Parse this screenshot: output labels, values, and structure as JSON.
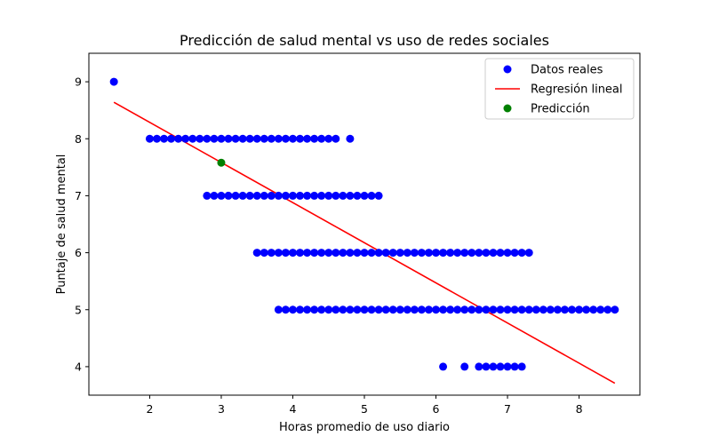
{
  "chart_data": {
    "type": "scatter",
    "title": "Predicción de salud mental vs uso de redes sociales",
    "xlabel": "Horas promedio de uso diario",
    "ylabel": "Puntaje de salud mental",
    "xlim": [
      1.15,
      8.85
    ],
    "ylim": [
      3.5,
      9.5
    ],
    "xticks": [
      2,
      3,
      4,
      5,
      6,
      7,
      8
    ],
    "yticks": [
      4,
      5,
      6,
      7,
      8,
      9
    ],
    "grid": false,
    "legend_position": "top-right",
    "legend": [
      {
        "label": "Datos reales",
        "marker": "point",
        "color": "#0000ff"
      },
      {
        "label": "Regresión lineal",
        "marker": "line",
        "color": "#ff0000"
      },
      {
        "label": "Predicción",
        "marker": "point",
        "color": "#008000"
      }
    ],
    "series": [
      {
        "name": "Datos reales",
        "kind": "scatter",
        "color": "#0000ff",
        "points": [
          {
            "x": 1.5,
            "y": 9
          },
          {
            "x": 2.0,
            "y": 8
          },
          {
            "x": 2.1,
            "y": 8
          },
          {
            "x": 2.2,
            "y": 8
          },
          {
            "x": 2.3,
            "y": 8
          },
          {
            "x": 2.4,
            "y": 8
          },
          {
            "x": 2.5,
            "y": 8
          },
          {
            "x": 2.6,
            "y": 8
          },
          {
            "x": 2.7,
            "y": 8
          },
          {
            "x": 2.8,
            "y": 8
          },
          {
            "x": 2.9,
            "y": 8
          },
          {
            "x": 3.0,
            "y": 8
          },
          {
            "x": 3.1,
            "y": 8
          },
          {
            "x": 3.2,
            "y": 8
          },
          {
            "x": 3.3,
            "y": 8
          },
          {
            "x": 3.4,
            "y": 8
          },
          {
            "x": 3.5,
            "y": 8
          },
          {
            "x": 3.6,
            "y": 8
          },
          {
            "x": 3.7,
            "y": 8
          },
          {
            "x": 3.8,
            "y": 8
          },
          {
            "x": 3.9,
            "y": 8
          },
          {
            "x": 4.0,
            "y": 8
          },
          {
            "x": 4.1,
            "y": 8
          },
          {
            "x": 4.2,
            "y": 8
          },
          {
            "x": 4.3,
            "y": 8
          },
          {
            "x": 4.4,
            "y": 8
          },
          {
            "x": 4.5,
            "y": 8
          },
          {
            "x": 4.6,
            "y": 8
          },
          {
            "x": 4.8,
            "y": 8
          },
          {
            "x": 2.8,
            "y": 7
          },
          {
            "x": 2.9,
            "y": 7
          },
          {
            "x": 3.0,
            "y": 7
          },
          {
            "x": 3.1,
            "y": 7
          },
          {
            "x": 3.2,
            "y": 7
          },
          {
            "x": 3.3,
            "y": 7
          },
          {
            "x": 3.4,
            "y": 7
          },
          {
            "x": 3.5,
            "y": 7
          },
          {
            "x": 3.6,
            "y": 7
          },
          {
            "x": 3.7,
            "y": 7
          },
          {
            "x": 3.8,
            "y": 7
          },
          {
            "x": 3.9,
            "y": 7
          },
          {
            "x": 4.0,
            "y": 7
          },
          {
            "x": 4.1,
            "y": 7
          },
          {
            "x": 4.2,
            "y": 7
          },
          {
            "x": 4.3,
            "y": 7
          },
          {
            "x": 4.4,
            "y": 7
          },
          {
            "x": 4.5,
            "y": 7
          },
          {
            "x": 4.6,
            "y": 7
          },
          {
            "x": 4.7,
            "y": 7
          },
          {
            "x": 4.8,
            "y": 7
          },
          {
            "x": 4.9,
            "y": 7
          },
          {
            "x": 5.0,
            "y": 7
          },
          {
            "x": 5.1,
            "y": 7
          },
          {
            "x": 5.2,
            "y": 7
          },
          {
            "x": 3.5,
            "y": 6
          },
          {
            "x": 3.6,
            "y": 6
          },
          {
            "x": 3.7,
            "y": 6
          },
          {
            "x": 3.8,
            "y": 6
          },
          {
            "x": 3.9,
            "y": 6
          },
          {
            "x": 4.0,
            "y": 6
          },
          {
            "x": 4.1,
            "y": 6
          },
          {
            "x": 4.2,
            "y": 6
          },
          {
            "x": 4.3,
            "y": 6
          },
          {
            "x": 4.4,
            "y": 6
          },
          {
            "x": 4.5,
            "y": 6
          },
          {
            "x": 4.6,
            "y": 6
          },
          {
            "x": 4.7,
            "y": 6
          },
          {
            "x": 4.8,
            "y": 6
          },
          {
            "x": 4.9,
            "y": 6
          },
          {
            "x": 5.0,
            "y": 6
          },
          {
            "x": 5.1,
            "y": 6
          },
          {
            "x": 5.2,
            "y": 6
          },
          {
            "x": 5.3,
            "y": 6
          },
          {
            "x": 5.4,
            "y": 6
          },
          {
            "x": 5.5,
            "y": 6
          },
          {
            "x": 5.6,
            "y": 6
          },
          {
            "x": 5.7,
            "y": 6
          },
          {
            "x": 5.8,
            "y": 6
          },
          {
            "x": 5.9,
            "y": 6
          },
          {
            "x": 6.0,
            "y": 6
          },
          {
            "x": 6.1,
            "y": 6
          },
          {
            "x": 6.2,
            "y": 6
          },
          {
            "x": 6.3,
            "y": 6
          },
          {
            "x": 6.4,
            "y": 6
          },
          {
            "x": 6.5,
            "y": 6
          },
          {
            "x": 6.6,
            "y": 6
          },
          {
            "x": 6.7,
            "y": 6
          },
          {
            "x": 6.8,
            "y": 6
          },
          {
            "x": 6.9,
            "y": 6
          },
          {
            "x": 7.0,
            "y": 6
          },
          {
            "x": 7.1,
            "y": 6
          },
          {
            "x": 7.2,
            "y": 6
          },
          {
            "x": 7.3,
            "y": 6
          },
          {
            "x": 3.8,
            "y": 5
          },
          {
            "x": 3.9,
            "y": 5
          },
          {
            "x": 4.0,
            "y": 5
          },
          {
            "x": 4.1,
            "y": 5
          },
          {
            "x": 4.2,
            "y": 5
          },
          {
            "x": 4.3,
            "y": 5
          },
          {
            "x": 4.4,
            "y": 5
          },
          {
            "x": 4.5,
            "y": 5
          },
          {
            "x": 4.6,
            "y": 5
          },
          {
            "x": 4.7,
            "y": 5
          },
          {
            "x": 4.8,
            "y": 5
          },
          {
            "x": 4.9,
            "y": 5
          },
          {
            "x": 5.0,
            "y": 5
          },
          {
            "x": 5.1,
            "y": 5
          },
          {
            "x": 5.2,
            "y": 5
          },
          {
            "x": 5.3,
            "y": 5
          },
          {
            "x": 5.4,
            "y": 5
          },
          {
            "x": 5.5,
            "y": 5
          },
          {
            "x": 5.6,
            "y": 5
          },
          {
            "x": 5.7,
            "y": 5
          },
          {
            "x": 5.8,
            "y": 5
          },
          {
            "x": 5.9,
            "y": 5
          },
          {
            "x": 6.0,
            "y": 5
          },
          {
            "x": 6.1,
            "y": 5
          },
          {
            "x": 6.2,
            "y": 5
          },
          {
            "x": 6.3,
            "y": 5
          },
          {
            "x": 6.4,
            "y": 5
          },
          {
            "x": 6.5,
            "y": 5
          },
          {
            "x": 6.6,
            "y": 5
          },
          {
            "x": 6.7,
            "y": 5
          },
          {
            "x": 6.8,
            "y": 5
          },
          {
            "x": 6.9,
            "y": 5
          },
          {
            "x": 7.0,
            "y": 5
          },
          {
            "x": 7.1,
            "y": 5
          },
          {
            "x": 7.2,
            "y": 5
          },
          {
            "x": 7.3,
            "y": 5
          },
          {
            "x": 7.4,
            "y": 5
          },
          {
            "x": 7.5,
            "y": 5
          },
          {
            "x": 7.6,
            "y": 5
          },
          {
            "x": 7.7,
            "y": 5
          },
          {
            "x": 7.8,
            "y": 5
          },
          {
            "x": 7.9,
            "y": 5
          },
          {
            "x": 8.0,
            "y": 5
          },
          {
            "x": 8.1,
            "y": 5
          },
          {
            "x": 8.2,
            "y": 5
          },
          {
            "x": 8.3,
            "y": 5
          },
          {
            "x": 8.4,
            "y": 5
          },
          {
            "x": 8.5,
            "y": 5
          },
          {
            "x": 6.1,
            "y": 4
          },
          {
            "x": 6.4,
            "y": 4
          },
          {
            "x": 6.6,
            "y": 4
          },
          {
            "x": 6.7,
            "y": 4
          },
          {
            "x": 6.8,
            "y": 4
          },
          {
            "x": 6.9,
            "y": 4
          },
          {
            "x": 7.0,
            "y": 4
          },
          {
            "x": 7.1,
            "y": 4
          },
          {
            "x": 7.2,
            "y": 4
          }
        ]
      },
      {
        "name": "Regresión lineal",
        "kind": "line",
        "color": "#ff0000",
        "points": [
          {
            "x": 1.5,
            "y": 8.64
          },
          {
            "x": 8.5,
            "y": 3.71
          }
        ]
      },
      {
        "name": "Predicción",
        "kind": "scatter",
        "color": "#008000",
        "points": [
          {
            "x": 3.0,
            "y": 7.58
          }
        ]
      }
    ]
  }
}
